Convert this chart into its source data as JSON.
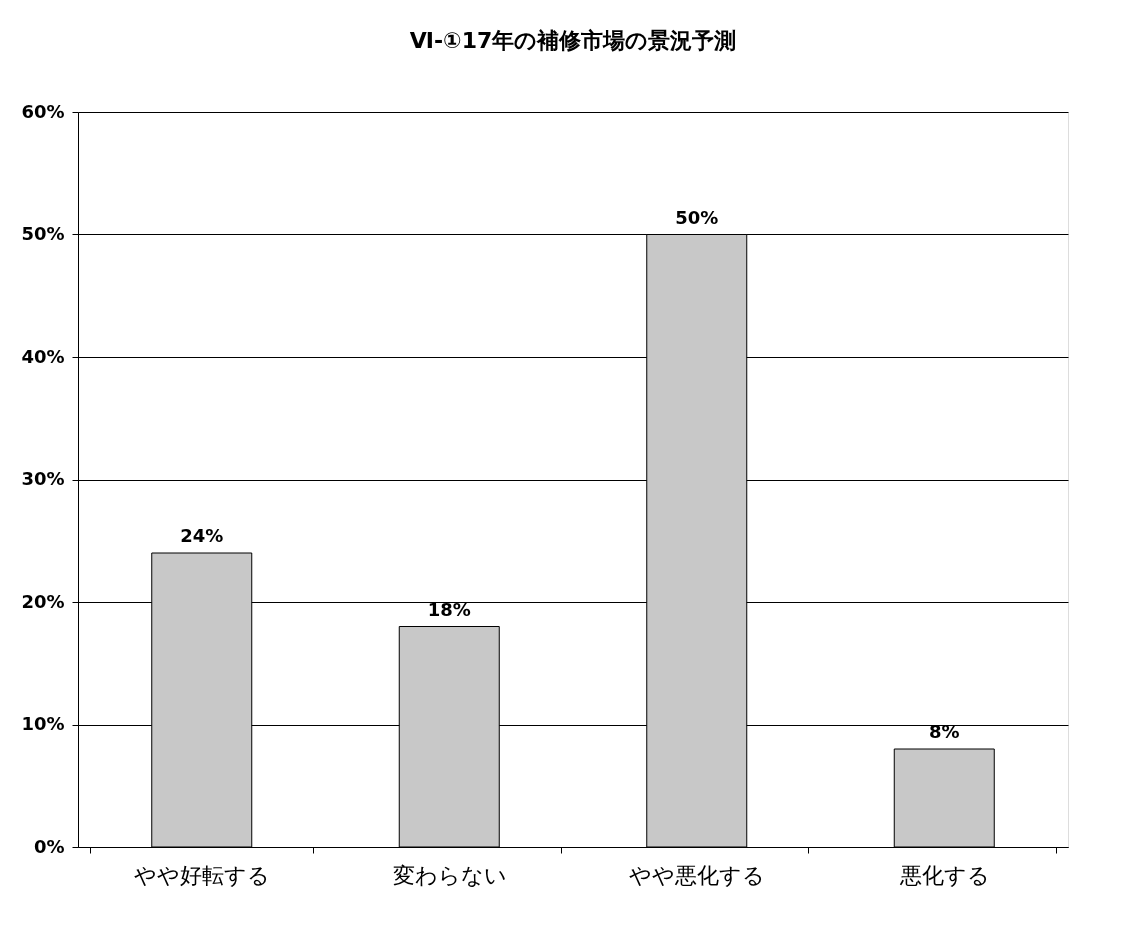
{
  "chart_data": {
    "type": "bar",
    "title": "Ⅵ-①17年の補修市場の景況予測",
    "categories": [
      "やや好転する",
      "変わらない",
      "やや悪化する",
      "悪化する"
    ],
    "values": [
      24,
      18,
      50,
      8
    ],
    "value_labels": [
      "24%",
      "18%",
      "50%",
      "8%"
    ],
    "color": "#c8c8c8",
    "ylim": [
      0,
      60
    ],
    "yticks": [
      {
        "value": 0,
        "label": "0%"
      },
      {
        "value": 10,
        "label": "10%"
      },
      {
        "value": 20,
        "label": "20%"
      },
      {
        "value": 30,
        "label": "30%"
      },
      {
        "value": 40,
        "label": "40%"
      },
      {
        "value": 50,
        "label": "50%"
      },
      {
        "value": 60,
        "label": "60%"
      }
    ],
    "grid": "y"
  }
}
